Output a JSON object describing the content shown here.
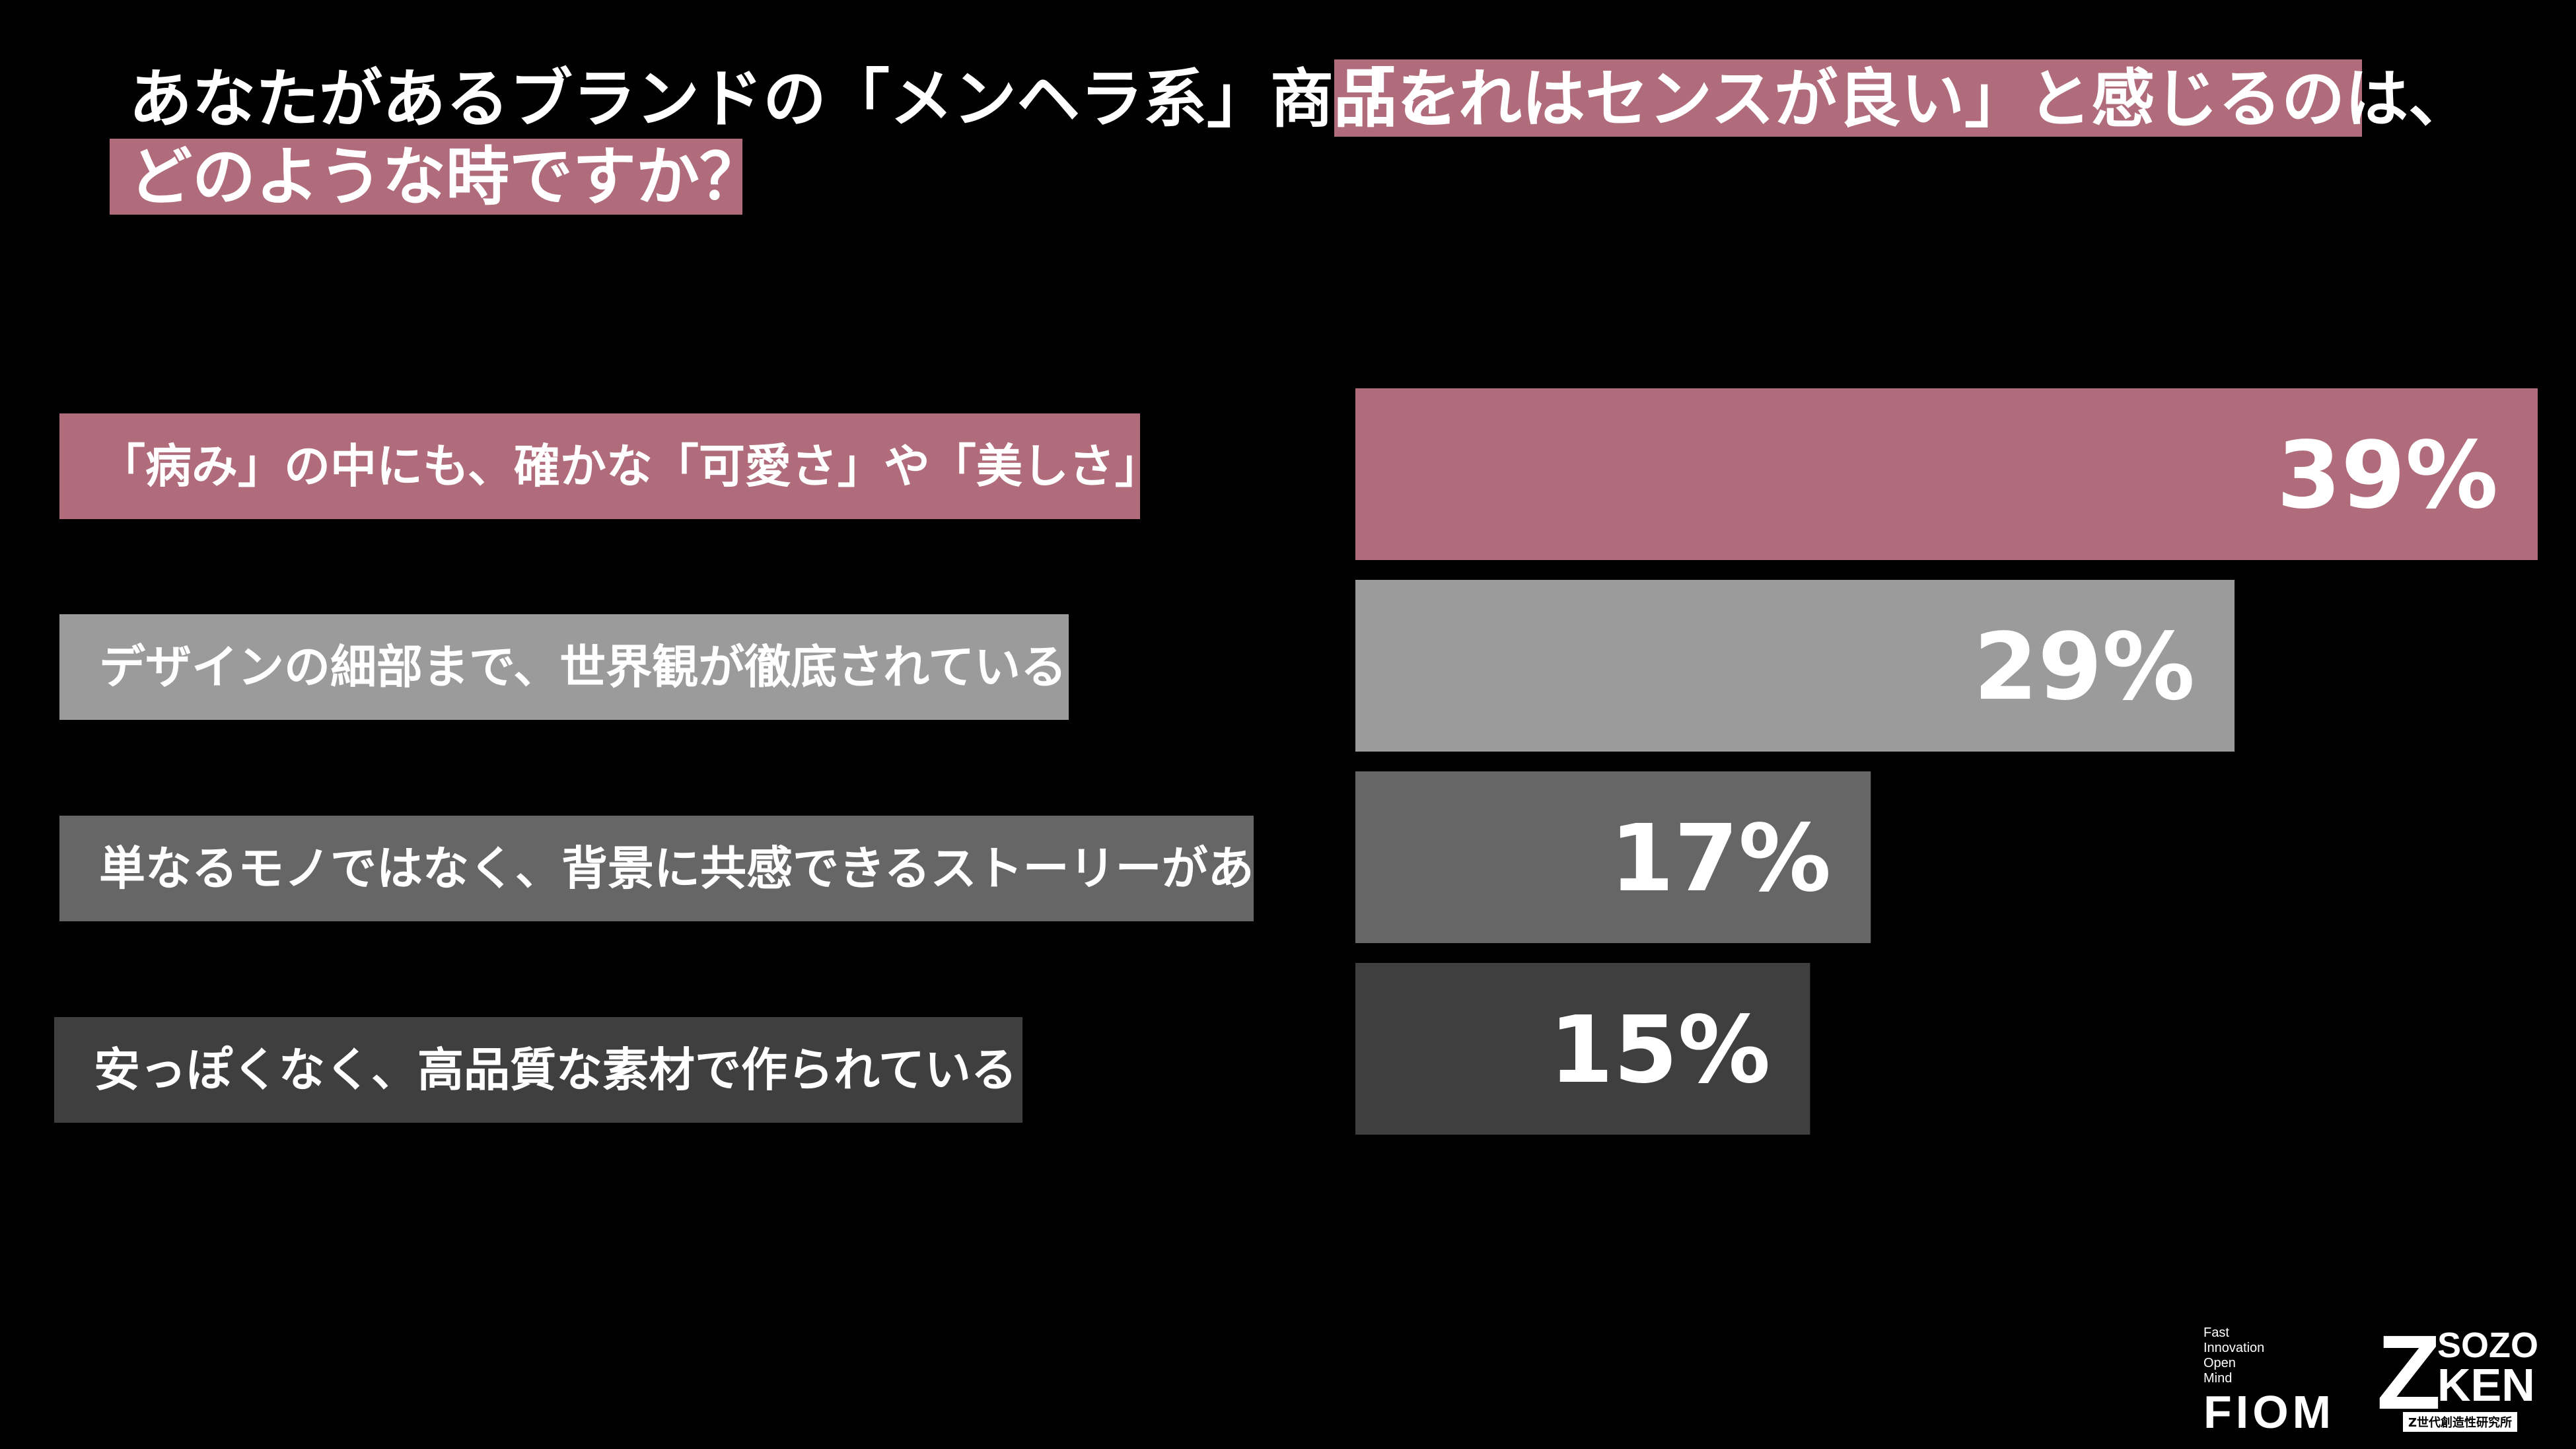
{
  "question": {
    "line1_part1": "あなたがあるブランドの「メンヘラ系」商品を",
    "line1_part2": "「これはセンスが良い」と感じるのは、",
    "line2": "どのような時ですか？",
    "highlight_color": "#b06c7b"
  },
  "chart_data": {
    "type": "bar",
    "orientation": "horizontal",
    "categories": [
      "「病み」の中にも、確かな「可愛さ」や「美しさ」がある",
      "デザインの細部まで、世界観が徹底されている",
      "単なるモノではなく、背景に共感できるストーリーがある",
      "安っぽくなく、高品質な素材で作られている"
    ],
    "values": [
      39,
      29,
      17,
      15
    ],
    "value_labels": [
      "39%",
      "29%",
      "17%",
      "15%"
    ],
    "bar_colors": [
      "#b06c7b",
      "#9b9b9b",
      "#666666",
      "#3f3f3f"
    ],
    "label_colors": [
      "#b06c7b",
      "#9b9b9b",
      "#666666",
      "#3f3f3f"
    ],
    "xlim": [
      0,
      39
    ],
    "grid": false,
    "title": "",
    "xlabel": "",
    "ylabel": ""
  },
  "logos": {
    "fiom_small": "Fast\nInnovation\nOpen\nMind",
    "fiom_big": "FIOM",
    "zk_z": "Z",
    "zk_sozo": "SOZO",
    "zk_ken": "KEN",
    "zk_sub": "Z世代創造性研究所"
  }
}
